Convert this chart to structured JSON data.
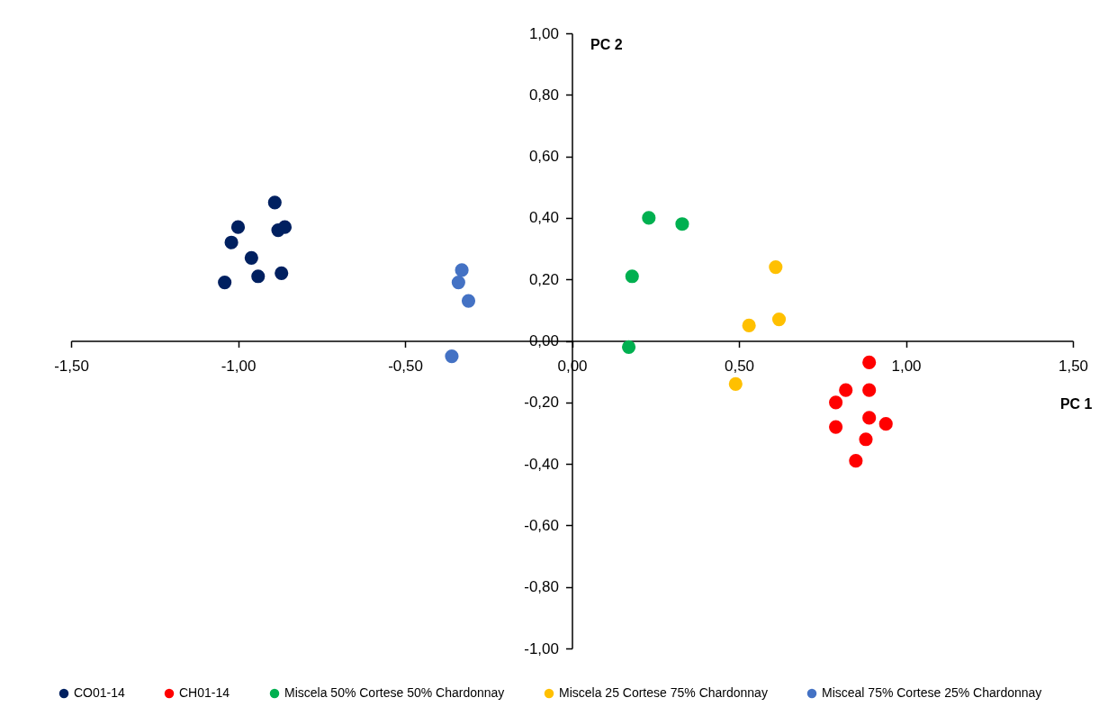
{
  "chart_data": {
    "type": "scatter",
    "xlabel": "PC 1",
    "ylabel": "PC 2",
    "xlim": [
      -1.5,
      1.5
    ],
    "ylim": [
      -1.0,
      1.0
    ],
    "xticks": [
      {
        "value": -1.5,
        "label": "-1,50"
      },
      {
        "value": -1.0,
        "label": "-1,00"
      },
      {
        "value": -0.5,
        "label": "-0,50"
      },
      {
        "value": 0,
        "label": "0,00"
      },
      {
        "value": 0.5,
        "label": "0,50"
      },
      {
        "value": 1.0,
        "label": "1,00"
      },
      {
        "value": 1.5,
        "label": "1,50"
      }
    ],
    "yticks": [
      {
        "value": -1.0,
        "label": "-1,00"
      },
      {
        "value": -0.8,
        "label": "-0,80"
      },
      {
        "value": -0.6,
        "label": "-0,60"
      },
      {
        "value": -0.4,
        "label": "-0,40"
      },
      {
        "value": -0.2,
        "label": "-0,20"
      },
      {
        "value": 0,
        "label": "0,00"
      },
      {
        "value": 0.2,
        "label": "0,20"
      },
      {
        "value": 0.4,
        "label": "0,40"
      },
      {
        "value": 0.6,
        "label": "0,60"
      },
      {
        "value": 0.8,
        "label": "0,80"
      },
      {
        "value": 1.0,
        "label": "1,00"
      }
    ],
    "grid": false,
    "legend": "bottom",
    "marker": "circle",
    "series": [
      {
        "name": "CO01-14",
        "color": "#002060",
        "x": [
          -0.89,
          -1.0,
          -0.88,
          -0.86,
          -1.02,
          -0.96,
          -0.94,
          -0.87,
          -1.04
        ],
        "values": [
          0.45,
          0.37,
          0.36,
          0.37,
          0.32,
          0.27,
          0.21,
          0.22,
          0.19
        ]
      },
      {
        "name": "CH01-14",
        "color": "#ff0000",
        "x": [
          0.89,
          0.82,
          0.89,
          0.79,
          0.89,
          0.94,
          0.79,
          0.88,
          0.85
        ],
        "values": [
          -0.07,
          -0.16,
          -0.16,
          -0.2,
          -0.25,
          -0.27,
          -0.28,
          -0.32,
          -0.39
        ]
      },
      {
        "name": "Miscela 50% Cortese 50% Chardonnay",
        "color": "#00b050",
        "x": [
          0.23,
          0.33,
          0.18,
          0.17
        ],
        "values": [
          0.4,
          0.38,
          0.21,
          -0.02
        ]
      },
      {
        "name": "Miscela 25 Cortese 75% Chardonnay",
        "color": "#ffc000",
        "x": [
          0.61,
          0.53,
          0.62,
          0.49
        ],
        "values": [
          0.24,
          0.05,
          0.07,
          -0.14
        ]
      },
      {
        "name": "Misceal 75% Cortese 25% Chardonnay",
        "color": "#4472c4",
        "x": [
          -0.33,
          -0.34,
          -0.31,
          -0.36
        ],
        "values": [
          0.23,
          0.19,
          0.13,
          -0.05
        ]
      }
    ]
  }
}
